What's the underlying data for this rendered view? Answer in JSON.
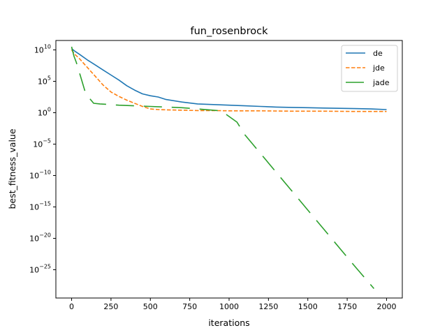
{
  "chart_data": {
    "type": "line",
    "title": "fun_rosenbrock",
    "xlabel": "iterations",
    "ylabel": "best_fitness_value",
    "y_scale": "log",
    "xlim": [
      -100,
      2100
    ],
    "ylim_log10": [
      -29.5,
      11.5
    ],
    "x_ticks": [
      0,
      250,
      500,
      750,
      1000,
      1250,
      1500,
      1750,
      2000
    ],
    "y_ticks": [
      {
        "exp": 10,
        "label": "10",
        "sup": "10"
      },
      {
        "exp": 5,
        "label": "10",
        "sup": "5"
      },
      {
        "exp": 0,
        "label": "10",
        "sup": "0"
      },
      {
        "exp": -5,
        "label": "10",
        "sup": "−5"
      },
      {
        "exp": -10,
        "label": "10",
        "sup": "−10"
      },
      {
        "exp": -15,
        "label": "10",
        "sup": "−15"
      },
      {
        "exp": -20,
        "label": "10",
        "sup": "−20"
      },
      {
        "exp": -25,
        "label": "10",
        "sup": "−25"
      }
    ],
    "grid": false,
    "legend_position": "upper-right",
    "series": [
      {
        "name": "de",
        "color": "#1f77b4",
        "style": "solid",
        "x": [
          0,
          20,
          50,
          100,
          150,
          200,
          250,
          300,
          350,
          400,
          450,
          500,
          550,
          600,
          700,
          800,
          900,
          1000,
          1100,
          1200,
          1300,
          1400,
          1500,
          1600,
          1700,
          1800,
          1900,
          2000
        ],
        "log10_y": [
          10.2,
          9.8,
          9.3,
          8.4,
          7.6,
          6.8,
          6.0,
          5.2,
          4.3,
          3.6,
          3.0,
          2.7,
          2.5,
          2.1,
          1.7,
          1.4,
          1.3,
          1.2,
          1.1,
          1.0,
          0.9,
          0.85,
          0.8,
          0.75,
          0.7,
          0.65,
          0.6,
          0.5
        ]
      },
      {
        "name": "jde",
        "color": "#ff7f0e",
        "style": "dashed",
        "x": [
          0,
          20,
          50,
          100,
          150,
          200,
          250,
          300,
          350,
          400,
          450,
          500,
          550,
          600,
          700,
          800,
          900,
          1000,
          1200,
          1400,
          1600,
          1800,
          2000
        ],
        "log10_y": [
          10.0,
          9.3,
          8.6,
          7.2,
          5.8,
          4.4,
          3.3,
          2.6,
          2.0,
          1.5,
          1.0,
          0.6,
          0.5,
          0.45,
          0.4,
          0.35,
          0.35,
          0.3,
          0.3,
          0.25,
          0.25,
          0.2,
          0.2
        ]
      },
      {
        "name": "jade",
        "color": "#2ca02c",
        "style": "longdash",
        "x": [
          0,
          15,
          30,
          60,
          90,
          140,
          180,
          300,
          500,
          700,
          950,
          1050,
          1100,
          1200,
          1300,
          1400,
          1500,
          1600,
          1700,
          1800,
          1920
        ],
        "log10_y": [
          10.5,
          9.0,
          8.0,
          5.5,
          3.0,
          1.5,
          1.4,
          1.2,
          1.0,
          0.8,
          0.3,
          -1.5,
          -3.5,
          -6.5,
          -9.5,
          -12.5,
          -15.5,
          -18.5,
          -21.5,
          -24.5,
          -28.0
        ]
      }
    ]
  }
}
